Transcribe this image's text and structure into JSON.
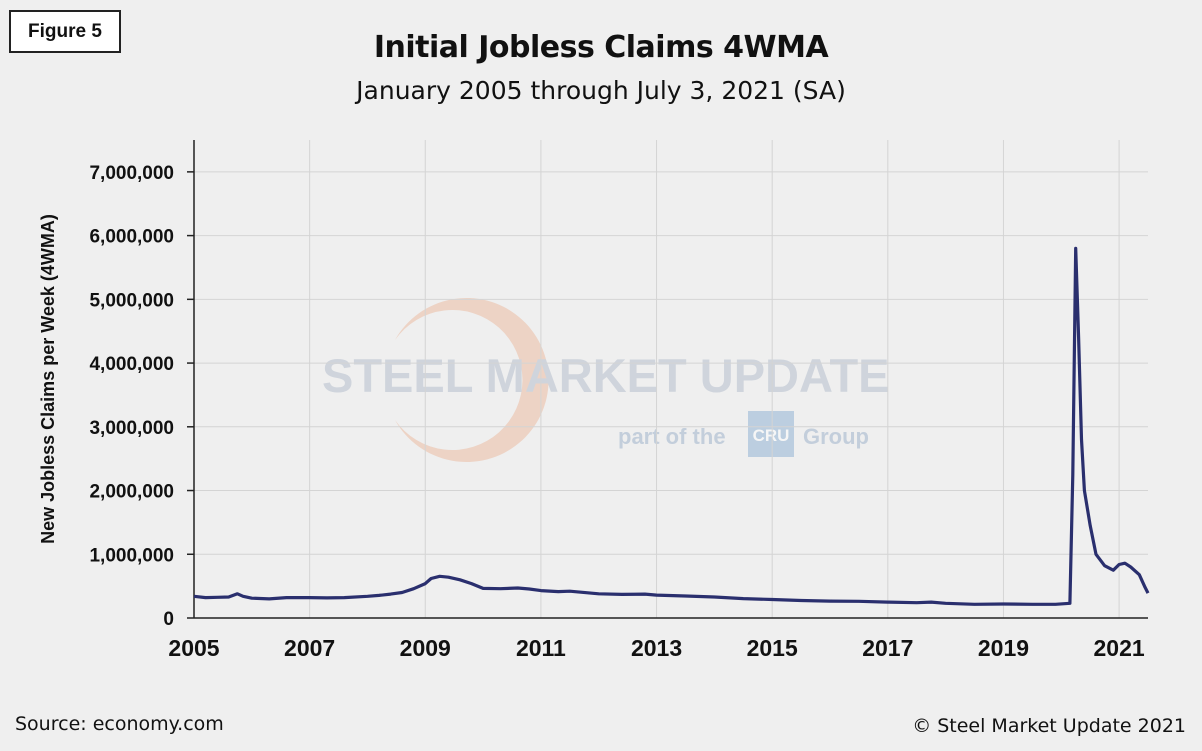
{
  "figure_label": "Figure 5",
  "source": "Source: economy.com",
  "copyright": "© Steel Market Update 2021",
  "watermark": {
    "brand": "STEEL MARKET UPDATE",
    "tagline_prefix": "part of the",
    "tagline_logo": "CRU",
    "tagline_suffix": "Group"
  },
  "colors": {
    "line": "#2a2f6e",
    "grid": "#d4d4d4",
    "background": "#efefef"
  },
  "chart_data": {
    "type": "line",
    "title": "Initial Jobless Claims 4WMA",
    "subtitle": "January 2005 through July 3, 2021 (SA)",
    "xlabel": "",
    "ylabel": "New Jobless Claims per Week (4WMA)",
    "xlim": [
      2005.0,
      2021.5
    ],
    "ylim": [
      0,
      7500000
    ],
    "x_ticks": [
      2005,
      2007,
      2009,
      2011,
      2013,
      2015,
      2017,
      2019,
      2021
    ],
    "x_tick_labels": [
      "2005",
      "2007",
      "2009",
      "2011",
      "2013",
      "2015",
      "2017",
      "2019",
      "2021"
    ],
    "y_ticks": [
      0,
      1000000,
      2000000,
      3000000,
      4000000,
      5000000,
      6000000,
      7000000
    ],
    "y_tick_labels": [
      "0",
      "1,000,000",
      "2,000,000",
      "3,000,000",
      "4,000,000",
      "5,000,000",
      "6,000,000",
      "7,000,000"
    ],
    "grid": true,
    "legend": "none",
    "series": [
      {
        "x": [
          2005.0,
          2005.2,
          2005.4,
          2005.6,
          2005.75,
          2005.85,
          2006.0,
          2006.3,
          2006.6,
          2007.0,
          2007.3,
          2007.6,
          2008.0,
          2008.2,
          2008.4,
          2008.6,
          2008.8,
          2009.0,
          2009.1,
          2009.25,
          2009.4,
          2009.6,
          2009.8,
          2010.0,
          2010.3,
          2010.6,
          2010.8,
          2011.0,
          2011.3,
          2011.5,
          2012.0,
          2012.4,
          2012.8,
          2013.0,
          2013.5,
          2014.0,
          2014.5,
          2015.0,
          2015.5,
          2016.0,
          2016.5,
          2017.0,
          2017.5,
          2017.75,
          2018.0,
          2018.5,
          2019.0,
          2019.5,
          2019.9,
          2020.15,
          2020.2,
          2020.25,
          2020.3,
          2020.35,
          2020.4,
          2020.5,
          2020.6,
          2020.75,
          2020.9,
          2021.0,
          2021.1,
          2021.2,
          2021.35,
          2021.45,
          2021.5
        ],
        "y": [
          340000,
          320000,
          325000,
          330000,
          380000,
          340000,
          310000,
          300000,
          320000,
          320000,
          315000,
          320000,
          340000,
          355000,
          375000,
          400000,
          460000,
          540000,
          620000,
          655000,
          640000,
          600000,
          540000,
          465000,
          460000,
          470000,
          455000,
          430000,
          415000,
          420000,
          380000,
          370000,
          375000,
          360000,
          345000,
          330000,
          305000,
          290000,
          275000,
          265000,
          262000,
          250000,
          240000,
          250000,
          230000,
          215000,
          220000,
          215000,
          215000,
          230000,
          2250000,
          5800000,
          4400000,
          2800000,
          2000000,
          1450000,
          1000000,
          820000,
          750000,
          840000,
          860000,
          800000,
          680000,
          480000,
          390000
        ]
      }
    ]
  }
}
